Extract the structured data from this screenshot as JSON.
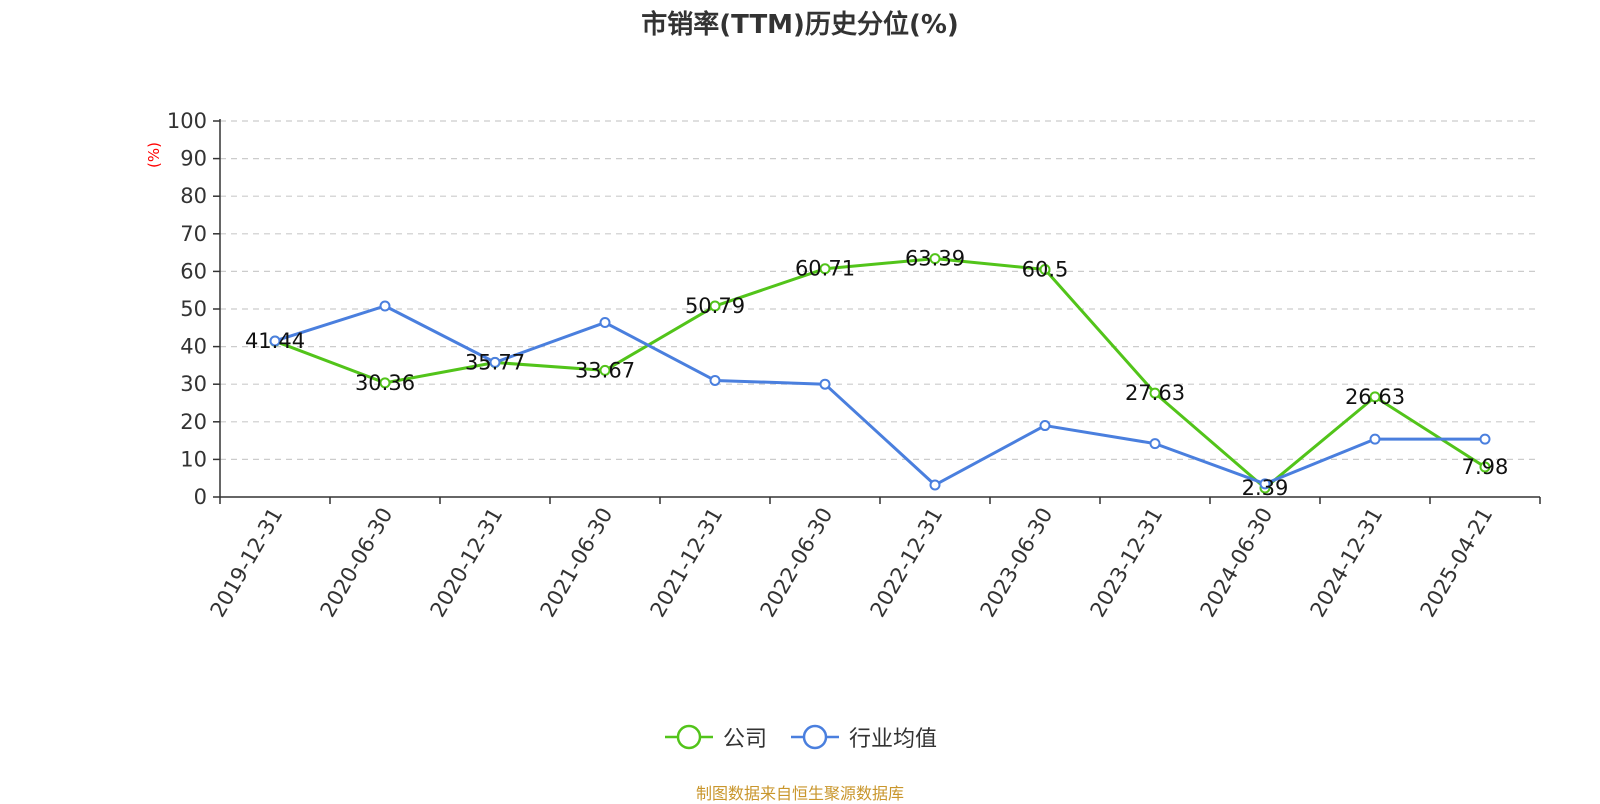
{
  "chart_data": {
    "type": "line",
    "title": "市销率(TTM)历史分位(%)",
    "ylabel": "(%)",
    "xlabel": "",
    "ylim": [
      0,
      100
    ],
    "yticks": [
      0,
      10,
      20,
      30,
      40,
      50,
      60,
      70,
      80,
      90,
      100
    ],
    "grid": true,
    "legend_position": "bottom",
    "categories": [
      "2019-12-31",
      "2020-06-30",
      "2020-12-31",
      "2021-06-30",
      "2021-12-31",
      "2022-06-30",
      "2022-12-31",
      "2023-06-30",
      "2023-12-31",
      "2024-06-30",
      "2024-12-31",
      "2025-04-21"
    ],
    "series": [
      {
        "name": "公司",
        "color": "#52c41a",
        "values": [
          41.44,
          30.36,
          35.77,
          33.67,
          50.79,
          60.71,
          63.39,
          60.5,
          27.63,
          2.39,
          26.63,
          7.98
        ],
        "labels": [
          "41.44",
          "30.36",
          "35.77",
          "33.67",
          "50.79",
          "60.71",
          "63.39",
          "60.5",
          "27.63",
          "2.39",
          "26.63",
          "7.98"
        ]
      },
      {
        "name": "行业均值",
        "color": "#4a7fde",
        "values": [
          41.5,
          50.8,
          35.8,
          46.4,
          31.0,
          30.0,
          3.2,
          19.0,
          14.2,
          3.5,
          15.4,
          15.4
        ]
      }
    ]
  },
  "source_note": "制图数据来自恒生聚源数据库"
}
